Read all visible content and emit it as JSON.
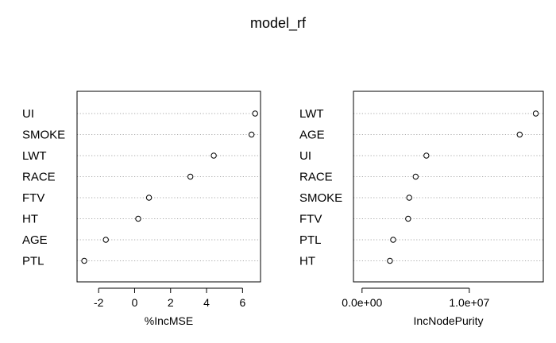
{
  "title": "model_rf",
  "chart_data": [
    {
      "type": "scatter",
      "variant": "dotchart",
      "xlabel": "%IncMSE",
      "categories": [
        "UI",
        "SMOKE",
        "LWT",
        "RACE",
        "FTV",
        "HT",
        "AGE",
        "PTL"
      ],
      "values": [
        6.7,
        6.5,
        4.4,
        3.1,
        0.8,
        0.2,
        -1.6,
        -2.8
      ],
      "xlim": [
        -3.2,
        7.0
      ],
      "ticks": [
        -2,
        0,
        2,
        4,
        6
      ],
      "tick_labels": [
        "-2",
        "0",
        "2",
        "4",
        "6"
      ],
      "grid": true
    },
    {
      "type": "scatter",
      "variant": "dotchart",
      "xlabel": "IncNodePurity",
      "categories": [
        "LWT",
        "AGE",
        "UI",
        "RACE",
        "SMOKE",
        "FTV",
        "PTL",
        "HT"
      ],
      "values": [
        16200000,
        14700000,
        6000000,
        5000000,
        4400000,
        4300000,
        2900000,
        2600000
      ],
      "xlim": [
        -800000,
        16900000
      ],
      "ticks": [
        0,
        10000000
      ],
      "tick_labels": [
        "0.0e+00",
        "1.0e+07"
      ],
      "grid": true
    }
  ]
}
